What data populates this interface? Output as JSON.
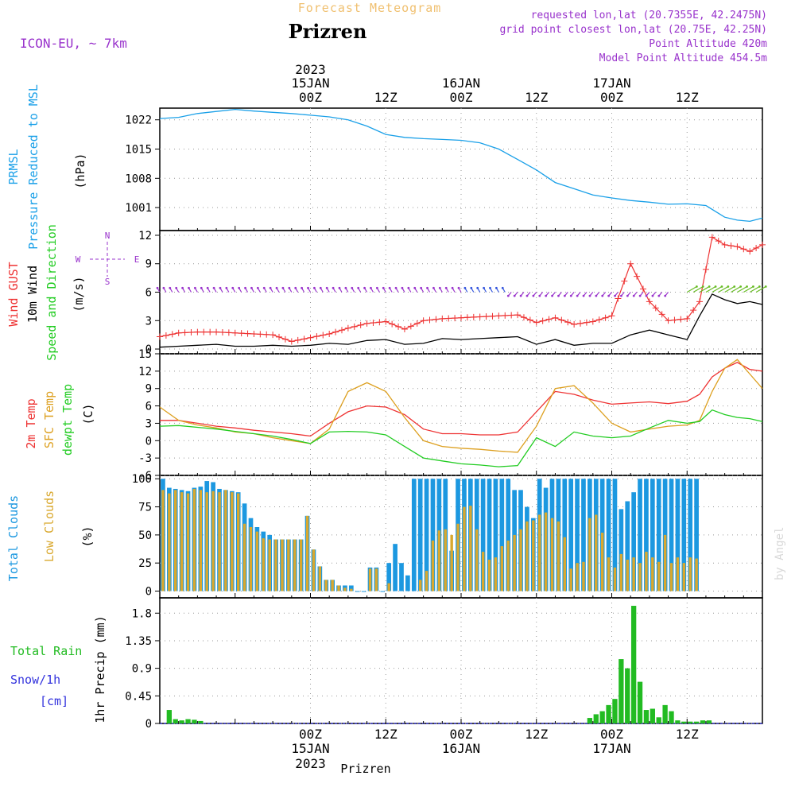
{
  "header": {
    "product_title": "Forecast Meteogram",
    "location": "Prizren",
    "model": "ICON-EU, ~ 7km",
    "requested": "requested lon,lat (20.7355E, 42.2475N)",
    "grid_point": "grid point closest lon,lat (20.75E, 42.25N)",
    "point_altitude": "Point Altitude 420m",
    "model_altitude": "Model Point Altitude 454.5m",
    "footer_location": "Prizren",
    "watermark": "by Angel"
  },
  "time_axis": {
    "year": "2023",
    "top_labels": [
      {
        "hour": 24,
        "line1": "2023",
        "line2": "15JAN",
        "line3": "00Z"
      },
      {
        "hour": 36,
        "line1": "",
        "line2": "",
        "line3": "12Z"
      },
      {
        "hour": 48,
        "line1": "",
        "line2": "16JAN",
        "line3": "00Z"
      },
      {
        "hour": 60,
        "line1": "",
        "line2": "",
        "line3": "12Z"
      },
      {
        "hour": 72,
        "line1": "",
        "line2": "17JAN",
        "line3": "00Z"
      },
      {
        "hour": 84,
        "line1": "",
        "line2": "",
        "line3": "12Z"
      }
    ],
    "bottom_labels": [
      {
        "hour": 24,
        "line1": "00Z",
        "line2": "15JAN",
        "line3": "2023"
      },
      {
        "hour": 36,
        "line1": "12Z",
        "line2": "",
        "line3": ""
      },
      {
        "hour": 48,
        "line1": "00Z",
        "line2": "16JAN",
        "line3": ""
      },
      {
        "hour": 60,
        "line1": "12Z",
        "line2": "",
        "line3": ""
      },
      {
        "hour": 72,
        "line1": "00Z",
        "line2": "17JAN",
        "line3": ""
      },
      {
        "hour": 84,
        "line1": "12Z",
        "line2": "",
        "line3": ""
      }
    ]
  },
  "colors": {
    "pressure": "#1aa0e8",
    "gust": "#ee3333",
    "wind": "#000000",
    "direction": "#22cc22",
    "arrow": "#9933cc",
    "temp": "#ee3333",
    "sfc": "#dda020",
    "dewpt": "#22cc22",
    "total_clouds": "#1c98e0",
    "low_clouds": "#d9a82e",
    "rain": "#22bb22",
    "snow": "#3333dd",
    "purple_text": "#9933cc",
    "title_orange": "#f0c070"
  },
  "chart_data": [
    {
      "id": "pressure",
      "type": "line",
      "ylabel_lines": [
        "PRMSL",
        "Pressure Reduced to MSL"
      ],
      "unit": "(hPa)",
      "ylim": [
        995.5,
        1024.8
      ],
      "yticks": [
        1001,
        1008,
        1015,
        1022
      ],
      "grid": true,
      "x": [
        0,
        3,
        6,
        9,
        12,
        15,
        18,
        21,
        24,
        27,
        30,
        33,
        36,
        39,
        42,
        45,
        48,
        51,
        54,
        57,
        60,
        63,
        66,
        69,
        72,
        75,
        78,
        81,
        84,
        87,
        90,
        92,
        94,
        96
      ],
      "y": [
        1022.3,
        1022.6,
        1023.5,
        1024.0,
        1024.5,
        1024.1,
        1023.8,
        1023.5,
        1023.1,
        1022.7,
        1022.0,
        1020.5,
        1018.5,
        1017.8,
        1017.5,
        1017.3,
        1017.1,
        1016.5,
        1015.0,
        1012.5,
        1010.0,
        1007.0,
        1005.5,
        1004.0,
        1003.3,
        1002.7,
        1002.3,
        1001.8,
        1001.9,
        1001.5,
        998.7,
        998.0,
        997.7,
        998.5
      ]
    },
    {
      "id": "wind",
      "type": "line",
      "ylabel_lines": [
        "Wind GUST",
        "10m Wind",
        "Speed and Direction"
      ],
      "unit": "(m/s)",
      "compass": {
        "n": "N",
        "s": "S",
        "e": "E",
        "w": "W"
      },
      "ylim": [
        -0.5,
        12.5
      ],
      "yticks": [
        0,
        3,
        6,
        9,
        12
      ],
      "grid": true,
      "gust": {
        "name": "Wind GUST",
        "x": [
          0,
          3,
          6,
          9,
          12,
          15,
          18,
          21,
          24,
          27,
          30,
          33,
          36,
          39,
          42,
          45,
          48,
          51,
          54,
          57,
          60,
          63,
          66,
          69,
          72,
          75,
          78,
          81,
          84,
          86,
          88,
          90,
          92,
          94,
          96
        ],
        "y": [
          1.3,
          1.7,
          1.8,
          1.8,
          1.7,
          1.6,
          1.5,
          0.8,
          1.2,
          1.6,
          2.2,
          2.7,
          2.9,
          2.1,
          3.0,
          3.2,
          3.3,
          3.4,
          3.5,
          3.6,
          2.8,
          3.3,
          2.6,
          2.9,
          3.5,
          9.0,
          5.0,
          3.0,
          3.2,
          5.0,
          11.8,
          11.0,
          10.8,
          10.3,
          11.0
        ]
      },
      "wind": {
        "name": "10m Wind",
        "x": [
          0,
          3,
          6,
          9,
          12,
          15,
          18,
          21,
          24,
          27,
          30,
          33,
          36,
          39,
          42,
          45,
          48,
          51,
          54,
          57,
          60,
          63,
          66,
          69,
          72,
          75,
          78,
          81,
          84,
          86,
          88,
          90,
          92,
          94,
          96
        ],
        "y": [
          0.2,
          0.3,
          0.4,
          0.5,
          0.3,
          0.3,
          0.4,
          0.3,
          0.4,
          0.6,
          0.5,
          0.9,
          1.0,
          0.5,
          0.6,
          1.1,
          1.0,
          1.1,
          1.2,
          1.3,
          0.5,
          1.0,
          0.4,
          0.6,
          0.6,
          1.5,
          2.0,
          1.5,
          1.0,
          3.5,
          5.8,
          5.2,
          4.8,
          5.0,
          4.7
        ]
      },
      "directions": [
        {
          "x_from": 0,
          "x_to": 49,
          "y": 6,
          "color": "#9933cc",
          "angle_deg": 120
        },
        {
          "x_from": 49,
          "x_to": 56,
          "y": 6,
          "color": "#3355dd",
          "angle_deg": 120
        },
        {
          "x_from": 56,
          "x_to": 82,
          "y": 6,
          "color": "#9933cc",
          "angle_deg": 230
        },
        {
          "x_from": 84,
          "x_to": 96,
          "y": 6,
          "color": "#66bb22",
          "angle_deg": 30
        }
      ]
    },
    {
      "id": "temperature",
      "type": "line",
      "ylabel_lines": [
        "2m Temp",
        "SFC Temp",
        "dewpt Temp"
      ],
      "unit": "(C)",
      "ylim": [
        -6,
        15
      ],
      "yticks": [
        -6,
        -3,
        0,
        3,
        6,
        9,
        12,
        15
      ],
      "grid": true,
      "series": [
        {
          "name": "2m Temp",
          "color": "#ee3333",
          "x": [
            0,
            3,
            6,
            9,
            12,
            15,
            18,
            21,
            24,
            27,
            30,
            33,
            36,
            39,
            42,
            45,
            48,
            51,
            54,
            57,
            60,
            63,
            66,
            69,
            72,
            75,
            78,
            81,
            84,
            86,
            88,
            90,
            92,
            94,
            96
          ],
          "y": [
            3.5,
            3.5,
            3.0,
            2.5,
            2.2,
            1.8,
            1.5,
            1.2,
            0.8,
            3.0,
            5.0,
            6.0,
            5.8,
            4.5,
            2.0,
            1.2,
            1.2,
            1.0,
            1.0,
            1.5,
            5.0,
            8.5,
            8.0,
            7.0,
            6.3,
            6.5,
            6.7,
            6.4,
            6.8,
            8.0,
            11.0,
            12.5,
            13.5,
            12.3,
            12.0
          ]
        },
        {
          "name": "SFC Temp",
          "color": "#dda020",
          "x": [
            0,
            3,
            6,
            9,
            12,
            15,
            18,
            21,
            24,
            27,
            30,
            33,
            36,
            39,
            42,
            45,
            48,
            51,
            54,
            57,
            60,
            63,
            66,
            69,
            72,
            75,
            78,
            81,
            84,
            86,
            88,
            90,
            92,
            94,
            96
          ],
          "y": [
            5.8,
            3.5,
            2.7,
            2.2,
            1.5,
            1.2,
            0.5,
            0.0,
            -0.5,
            2.0,
            8.5,
            10.0,
            8.5,
            4.0,
            0.0,
            -1.0,
            -1.3,
            -1.5,
            -1.8,
            -2.0,
            2.5,
            9.0,
            9.5,
            6.5,
            3.0,
            1.5,
            2.0,
            2.5,
            2.7,
            3.5,
            8.5,
            12.5,
            14.0,
            11.5,
            9.0
          ]
        },
        {
          "name": "dewpt Temp",
          "color": "#22cc22",
          "x": [
            0,
            3,
            6,
            9,
            12,
            15,
            18,
            21,
            24,
            27,
            30,
            33,
            36,
            39,
            42,
            45,
            48,
            51,
            54,
            57,
            60,
            63,
            66,
            69,
            72,
            75,
            78,
            81,
            84,
            86,
            88,
            90,
            92,
            94,
            96
          ],
          "y": [
            2.5,
            2.6,
            2.3,
            2.0,
            1.6,
            1.2,
            0.8,
            0.2,
            -0.5,
            1.5,
            1.6,
            1.5,
            1.0,
            -1.0,
            -3.0,
            -3.5,
            -4.0,
            -4.2,
            -4.5,
            -4.3,
            0.5,
            -1.0,
            1.5,
            0.8,
            0.5,
            0.8,
            2.2,
            3.5,
            3.0,
            3.3,
            5.3,
            4.5,
            4.0,
            3.8,
            3.3
          ]
        }
      ]
    },
    {
      "id": "clouds",
      "type": "bar",
      "ylabel_lines": [
        "Total Clouds",
        "Low Clouds"
      ],
      "unit": "(%)",
      "ylim": [
        -6,
        103
      ],
      "yticks": [
        0,
        25,
        50,
        75,
        100
      ],
      "grid": true,
      "x_start": 0,
      "x_step": 1,
      "total": [
        100,
        92,
        91,
        90,
        89,
        92,
        93,
        98,
        97,
        91,
        90,
        89,
        88,
        78,
        65,
        57,
        53,
        50,
        46,
        46,
        46,
        46,
        46,
        67,
        37,
        22,
        10,
        10,
        5,
        5,
        5,
        0,
        0,
        21,
        21,
        0,
        25,
        42,
        25,
        14,
        100,
        100,
        100,
        100,
        100,
        100,
        36,
        100,
        100,
        100,
        100,
        100,
        100,
        100,
        100,
        100,
        90,
        90,
        75,
        65,
        100,
        92,
        100,
        100,
        100,
        100,
        100,
        100,
        100,
        100,
        100,
        100,
        100,
        73,
        80,
        88,
        100,
        100,
        100,
        100,
        100,
        100,
        100,
        100,
        100,
        100
      ],
      "low": [
        90,
        87,
        90,
        88,
        87,
        91,
        90,
        88,
        89,
        88,
        90,
        88,
        87,
        60,
        57,
        53,
        47,
        46,
        46,
        46,
        46,
        46,
        46,
        67,
        37,
        22,
        10,
        10,
        5,
        3,
        2,
        0,
        0,
        20,
        20,
        0,
        7,
        0,
        0,
        0,
        0,
        10,
        18,
        45,
        54,
        55,
        50,
        60,
        75,
        76,
        55,
        35,
        28,
        30,
        40,
        45,
        50,
        55,
        62,
        63,
        68,
        70,
        65,
        62,
        48,
        20,
        25,
        26,
        65,
        68,
        52,
        30,
        21,
        33,
        28,
        30,
        25,
        35,
        30,
        26,
        50,
        25,
        30,
        25,
        30,
        29
      ]
    },
    {
      "id": "precip",
      "type": "bar",
      "ylabel_lines": [
        "1hr Precip (mm)"
      ],
      "legend_rain": "Total Rain",
      "legend_snow": "Snow/1h",
      "legend_unit": "[cm]",
      "ylim": [
        0,
        2.05
      ],
      "yticks": [
        "0",
        "0.45",
        "0.9",
        "1.35",
        "1.8"
      ],
      "ytick_values": [
        0,
        0.45,
        0.9,
        1.35,
        1.8
      ],
      "grid": true,
      "bars": [
        {
          "x": 1,
          "v": 0.22
        },
        {
          "x": 2,
          "v": 0.07
        },
        {
          "x": 3,
          "v": 0.05
        },
        {
          "x": 4,
          "v": 0.07
        },
        {
          "x": 5,
          "v": 0.06
        },
        {
          "x": 6,
          "v": 0.04
        },
        {
          "x": 68,
          "v": 0.09
        },
        {
          "x": 69,
          "v": 0.15
        },
        {
          "x": 70,
          "v": 0.2
        },
        {
          "x": 71,
          "v": 0.3
        },
        {
          "x": 72,
          "v": 0.4
        },
        {
          "x": 73,
          "v": 1.05
        },
        {
          "x": 74,
          "v": 0.9
        },
        {
          "x": 75,
          "v": 1.92
        },
        {
          "x": 76,
          "v": 0.68
        },
        {
          "x": 77,
          "v": 0.22
        },
        {
          "x": 78,
          "v": 0.24
        },
        {
          "x": 79,
          "v": 0.1
        },
        {
          "x": 80,
          "v": 0.3
        },
        {
          "x": 81,
          "v": 0.2
        },
        {
          "x": 82,
          "v": 0.05
        },
        {
          "x": 83,
          "v": 0.03
        },
        {
          "x": 84,
          "v": 0.03
        },
        {
          "x": 85,
          "v": 0.03
        },
        {
          "x": 86,
          "v": 0.05
        },
        {
          "x": 87,
          "v": 0.05
        }
      ]
    }
  ]
}
